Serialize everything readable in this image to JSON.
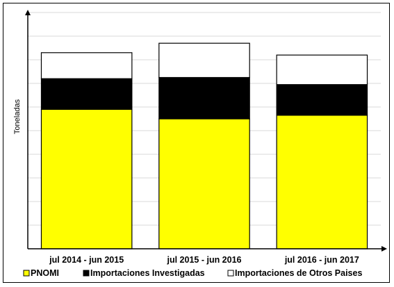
{
  "chart_data": {
    "type": "bar",
    "stacked": true,
    "title": "",
    "xlabel": "",
    "ylabel": "Toneladas",
    "categories": [
      "jul 2014 - jun 2015",
      "jul 2015 - jun 2016",
      "jul 2016 - jun 2017"
    ],
    "ylim": [
      0,
      100
    ],
    "grid": true,
    "legend_position": "bottom",
    "series": [
      {
        "name": "PNOMI",
        "color": "#ffff00",
        "values": [
          59,
          55,
          56.5
        ]
      },
      {
        "name": "Importaciones Investigadas",
        "color": "#000000",
        "values": [
          13,
          17.5,
          13
        ]
      },
      {
        "name": "Importaciones de Otros Paises",
        "color": "#ffffff",
        "values": [
          11,
          14.5,
          12.5
        ]
      }
    ]
  }
}
